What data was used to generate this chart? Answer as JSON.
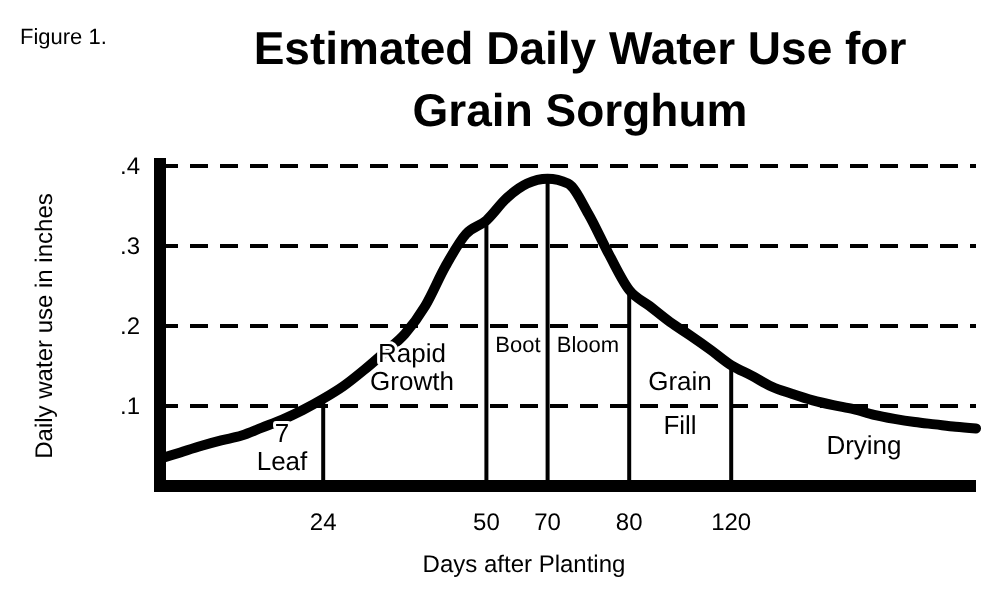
{
  "chart_data": {
    "type": "line",
    "title": "Estimated Daily Water Use for Grain Sorghum",
    "xlabel": "Days after Planting",
    "ylabel": "Daily water use in inches",
    "annotations": [
      "Figure 1.",
      "7 Leaf",
      "Rapid Growth",
      "Boot",
      "Bloom",
      "Grain Fill",
      "Drying"
    ],
    "categories": [
      null,
      null,
      null,
      null,
      null,
      null,
      null,
      null,
      "24",
      null,
      null,
      null,
      null,
      null,
      null,
      null,
      "50",
      null,
      null,
      "70",
      null,
      null,
      null,
      "80",
      null,
      null,
      null,
      null,
      "120",
      null,
      null,
      null,
      null,
      null,
      null,
      null,
      null,
      null,
      null,
      null,
      null
    ],
    "series": [
      {
        "color": "#000000",
        "values": [
          0.034,
          0.042,
          0.05,
          0.057,
          0.063,
          0.073,
          0.083,
          0.095,
          0.109,
          0.125,
          0.145,
          0.167,
          0.19,
          0.225,
          0.275,
          0.315,
          0.332,
          0.36,
          0.378,
          0.384,
          0.378,
          0.34,
          0.29,
          0.245,
          0.225,
          0.205,
          0.188,
          0.17,
          0.151,
          0.138,
          0.124,
          0.115,
          0.107,
          0.101,
          0.096,
          0.089,
          0.084,
          0.08,
          0.077,
          0.074,
          0.072
        ]
      }
    ],
    "ylim": [
      0,
      0.4
    ],
    "yticks": [
      {
        "value": 0.1,
        "label": ".1"
      },
      {
        "value": 0.2,
        "label": ".2"
      },
      {
        "value": 0.3,
        "label": ".3"
      },
      {
        "value": 0.4,
        "label": ".4"
      }
    ],
    "grid": "y",
    "ref_lines": [
      {
        "axis": "x",
        "value": "24",
        "color": "#000000"
      },
      {
        "axis": "x",
        "value": "50",
        "color": "#000000"
      },
      {
        "axis": "x",
        "value": "70",
        "color": "#000000"
      },
      {
        "axis": "x",
        "value": "80",
        "color": "#000000"
      },
      {
        "axis": "x",
        "value": "120",
        "color": "#000000"
      }
    ]
  }
}
